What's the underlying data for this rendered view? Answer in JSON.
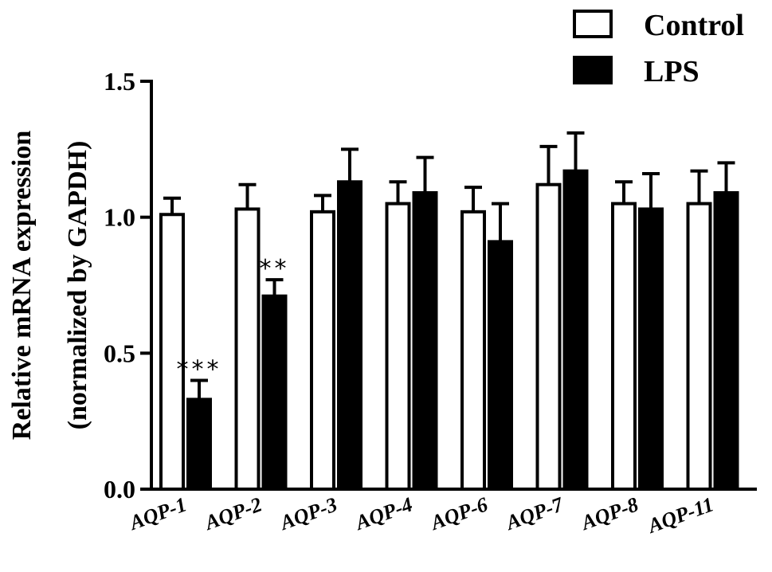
{
  "chart_data": {
    "type": "bar",
    "title": "",
    "xlabel": "",
    "ylabel_lines": [
      "Relative mRNA expression",
      "(normalized by GAPDH)"
    ],
    "ylim": [
      0,
      1.5
    ],
    "yticks": [
      0.0,
      0.5,
      1.0,
      1.5
    ],
    "ytick_labels": [
      "0.0",
      "0.5",
      "1.0",
      "1.5"
    ],
    "categories": [
      "AQP-1",
      "AQP-2",
      "AQP-3",
      "AQP-4",
      "AQP-6",
      "AQP-7",
      "AQP-8",
      "AQP-11"
    ],
    "series": [
      {
        "name": "Control",
        "fill": "#ffffff",
        "stroke": "#000000",
        "values": [
          1.01,
          1.03,
          1.02,
          1.05,
          1.02,
          1.12,
          1.05,
          1.05
        ],
        "errors": [
          0.06,
          0.09,
          0.06,
          0.08,
          0.09,
          0.14,
          0.08,
          0.12
        ]
      },
      {
        "name": "LPS",
        "fill": "#000000",
        "stroke": "#000000",
        "values": [
          0.33,
          0.71,
          1.13,
          1.09,
          0.91,
          1.17,
          1.03,
          1.09
        ],
        "errors": [
          0.07,
          0.06,
          0.12,
          0.13,
          0.14,
          0.14,
          0.13,
          0.11
        ]
      }
    ],
    "annotations": [
      {
        "category": "AQP-1",
        "series": "LPS",
        "text": "***"
      },
      {
        "category": "AQP-2",
        "series": "LPS",
        "text": "**"
      }
    ],
    "legend": {
      "position": "top-right"
    },
    "grid": false
  }
}
